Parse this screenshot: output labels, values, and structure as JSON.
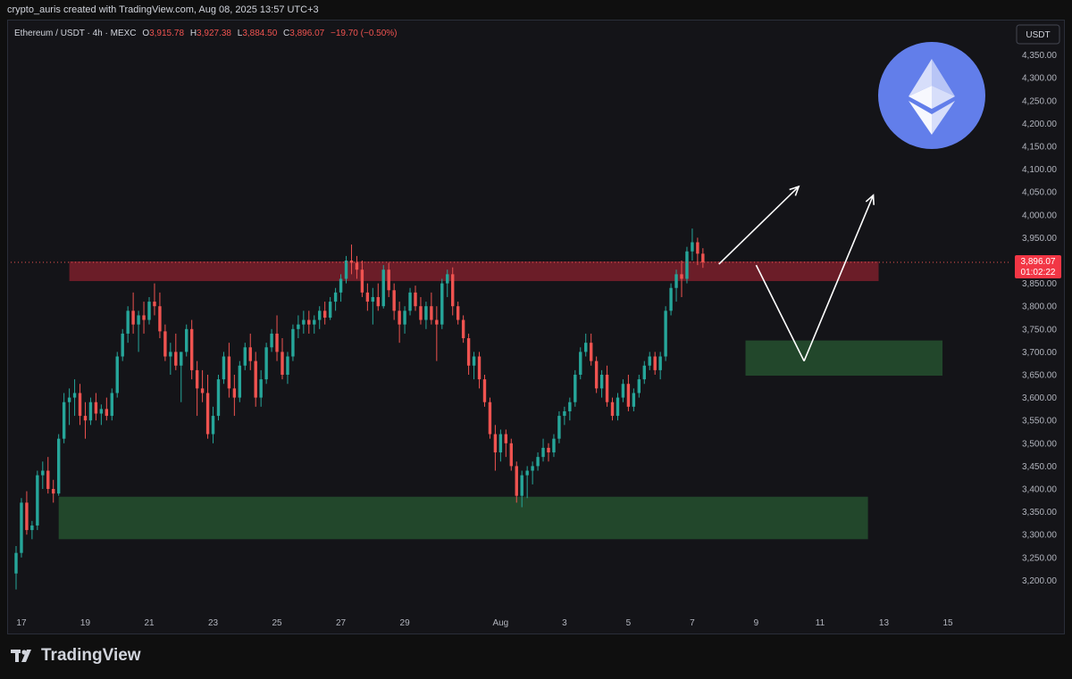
{
  "header": {
    "credit": "crypto_auris created with TradingView.com, Aug 08, 2025 13:57 UTC+3"
  },
  "legend": {
    "symbol": "Ethereum / USDT · 4h · MEXC",
    "o_label": "O",
    "o_value": "3,915.78",
    "h_label": "H",
    "h_value": "3,927.38",
    "l_label": "L",
    "l_value": "3,884.50",
    "c_label": "C",
    "c_value": "3,896.07",
    "change": "−19.70 (−0.50%)"
  },
  "currency_button": "USDT",
  "price_tag": {
    "price": "3,896.07",
    "countdown": "01:02:22"
  },
  "brand": {
    "name": "TradingView"
  },
  "colors": {
    "up": "#26a69a",
    "down": "#ef5350",
    "resistance_zone": "#7a1f2b",
    "support_zone": "#234a2c",
    "eth_circle": "#627eea"
  },
  "icons": {
    "logo": "ethereum-logo-icon",
    "brand": "tradingview-logo-icon"
  },
  "chart_data": {
    "type": "candlestick",
    "ylim": [
      3150,
      4400
    ],
    "y_ticks": [
      3200,
      3250,
      3300,
      3350,
      3400,
      3450,
      3500,
      3550,
      3600,
      3650,
      3700,
      3750,
      3800,
      3850,
      3900,
      3950,
      4000,
      4050,
      4100,
      4150,
      4200,
      4250,
      4300,
      4350
    ],
    "y_tick_labels": [
      "3,200.00",
      "3,250.00",
      "3,300.00",
      "3,350.00",
      "3,400.00",
      "3,450.00",
      "3,500.00",
      "3,550.00",
      "3,600.00",
      "3,650.00",
      "3,700.00",
      "3,750.00",
      "3,800.00",
      "3,850.00",
      "3,900.00",
      "3,950.00",
      "4,000.00",
      "4,050.00",
      "4,100.00",
      "4,150.00",
      "4,200.00",
      "4,250.00",
      "4,300.00",
      "4,350.00"
    ],
    "x_ticks": [
      {
        "label": "17",
        "bar": 1
      },
      {
        "label": "19",
        "bar": 13
      },
      {
        "label": "21",
        "bar": 25
      },
      {
        "label": "23",
        "bar": 37
      },
      {
        "label": "25",
        "bar": 49
      },
      {
        "label": "27",
        "bar": 61
      },
      {
        "label": "29",
        "bar": 73
      },
      {
        "label": "Aug",
        "bar": 91
      },
      {
        "label": "3",
        "bar": 103
      },
      {
        "label": "5",
        "bar": 115
      },
      {
        "label": "7",
        "bar": 127
      },
      {
        "label": "9",
        "bar": 139
      },
      {
        "label": "11",
        "bar": 151
      },
      {
        "label": "13",
        "bar": 163
      },
      {
        "label": "15",
        "bar": 175
      }
    ],
    "zones": [
      {
        "name": "resistance",
        "from_bar": 10,
        "to_bar": 162,
        "low": 3855,
        "high": 3898
      },
      {
        "name": "support",
        "from_bar": 8,
        "to_bar": 160,
        "low": 3290,
        "high": 3383
      },
      {
        "name": "demand",
        "from_bar": 137,
        "to_bar": 174,
        "low": 3648,
        "high": 3725
      }
    ],
    "arrows": [
      {
        "from": [
          132,
          3892
        ],
        "to": [
          147,
          4062
        ]
      },
      {
        "from": [
          139,
          3890
        ],
        "to": [
          148,
          3680
        ]
      },
      {
        "from": [
          148,
          3680
        ],
        "to": [
          161,
          4043
        ]
      }
    ],
    "last_price": 3896.07,
    "ohlc": [
      [
        3215,
        3275,
        3180,
        3260
      ],
      [
        3260,
        3380,
        3250,
        3370
      ],
      [
        3370,
        3395,
        3300,
        3310
      ],
      [
        3310,
        3330,
        3290,
        3320
      ],
      [
        3320,
        3440,
        3310,
        3430
      ],
      [
        3430,
        3460,
        3400,
        3440
      ],
      [
        3440,
        3470,
        3390,
        3400
      ],
      [
        3400,
        3420,
        3370,
        3390
      ],
      [
        3390,
        3520,
        3385,
        3510
      ],
      [
        3510,
        3610,
        3500,
        3590
      ],
      [
        3590,
        3620,
        3540,
        3600
      ],
      [
        3600,
        3640,
        3560,
        3610
      ],
      [
        3610,
        3630,
        3540,
        3560
      ],
      [
        3560,
        3590,
        3510,
        3550
      ],
      [
        3550,
        3600,
        3540,
        3590
      ],
      [
        3590,
        3610,
        3550,
        3565
      ],
      [
        3565,
        3585,
        3540,
        3575
      ],
      [
        3575,
        3600,
        3550,
        3560
      ],
      [
        3560,
        3620,
        3550,
        3610
      ],
      [
        3610,
        3700,
        3600,
        3690
      ],
      [
        3690,
        3750,
        3680,
        3740
      ],
      [
        3740,
        3800,
        3720,
        3790
      ],
      [
        3790,
        3830,
        3740,
        3760
      ],
      [
        3760,
        3790,
        3700,
        3780
      ],
      [
        3780,
        3810,
        3740,
        3770
      ],
      [
        3770,
        3820,
        3760,
        3810
      ],
      [
        3810,
        3850,
        3780,
        3800
      ],
      [
        3800,
        3830,
        3730,
        3745
      ],
      [
        3745,
        3760,
        3680,
        3690
      ],
      [
        3690,
        3720,
        3650,
        3700
      ],
      [
        3700,
        3740,
        3660,
        3670
      ],
      [
        3670,
        3700,
        3590,
        3700
      ],
      [
        3700,
        3760,
        3690,
        3750
      ],
      [
        3750,
        3770,
        3640,
        3660
      ],
      [
        3660,
        3680,
        3560,
        3620
      ],
      [
        3620,
        3660,
        3590,
        3610
      ],
      [
        3610,
        3650,
        3510,
        3520
      ],
      [
        3520,
        3580,
        3500,
        3560
      ],
      [
        3560,
        3650,
        3550,
        3640
      ],
      [
        3640,
        3700,
        3630,
        3690
      ],
      [
        3690,
        3720,
        3600,
        3620
      ],
      [
        3620,
        3650,
        3560,
        3600
      ],
      [
        3600,
        3680,
        3590,
        3670
      ],
      [
        3670,
        3720,
        3660,
        3710
      ],
      [
        3710,
        3740,
        3660,
        3680
      ],
      [
        3680,
        3700,
        3580,
        3600
      ],
      [
        3600,
        3660,
        3580,
        3640
      ],
      [
        3640,
        3720,
        3630,
        3710
      ],
      [
        3710,
        3750,
        3700,
        3740
      ],
      [
        3740,
        3780,
        3680,
        3700
      ],
      [
        3700,
        3730,
        3640,
        3650
      ],
      [
        3650,
        3700,
        3630,
        3690
      ],
      [
        3690,
        3760,
        3680,
        3750
      ],
      [
        3750,
        3780,
        3730,
        3760
      ],
      [
        3760,
        3790,
        3740,
        3770
      ],
      [
        3770,
        3790,
        3740,
        3760
      ],
      [
        3760,
        3780,
        3740,
        3770
      ],
      [
        3770,
        3800,
        3750,
        3790
      ],
      [
        3790,
        3810,
        3760,
        3775
      ],
      [
        3775,
        3820,
        3770,
        3810
      ],
      [
        3810,
        3840,
        3790,
        3830
      ],
      [
        3830,
        3870,
        3810,
        3860
      ],
      [
        3860,
        3910,
        3850,
        3900
      ],
      [
        3900,
        3935,
        3870,
        3895
      ],
      [
        3895,
        3910,
        3860,
        3880
      ],
      [
        3880,
        3900,
        3820,
        3830
      ],
      [
        3830,
        3850,
        3790,
        3810
      ],
      [
        3810,
        3840,
        3760,
        3820
      ],
      [
        3820,
        3850,
        3790,
        3800
      ],
      [
        3800,
        3890,
        3795,
        3880
      ],
      [
        3880,
        3895,
        3820,
        3835
      ],
      [
        3835,
        3850,
        3770,
        3790
      ],
      [
        3790,
        3810,
        3720,
        3760
      ],
      [
        3760,
        3800,
        3740,
        3790
      ],
      [
        3790,
        3840,
        3780,
        3830
      ],
      [
        3830,
        3845,
        3790,
        3800
      ],
      [
        3800,
        3820,
        3760,
        3770
      ],
      [
        3770,
        3810,
        3750,
        3800
      ],
      [
        3800,
        3830,
        3760,
        3770
      ],
      [
        3770,
        3800,
        3680,
        3760
      ],
      [
        3760,
        3860,
        3750,
        3850
      ],
      [
        3850,
        3880,
        3820,
        3870
      ],
      [
        3870,
        3885,
        3780,
        3800
      ],
      [
        3800,
        3810,
        3760,
        3770
      ],
      [
        3770,
        3780,
        3720,
        3730
      ],
      [
        3730,
        3740,
        3650,
        3670
      ],
      [
        3670,
        3700,
        3640,
        3690
      ],
      [
        3690,
        3700,
        3620,
        3640
      ],
      [
        3640,
        3650,
        3580,
        3590
      ],
      [
        3590,
        3600,
        3510,
        3520
      ],
      [
        3520,
        3540,
        3440,
        3480
      ],
      [
        3480,
        3530,
        3460,
        3520
      ],
      [
        3520,
        3530,
        3470,
        3500
      ],
      [
        3500,
        3510,
        3440,
        3450
      ],
      [
        3450,
        3460,
        3370,
        3385
      ],
      [
        3385,
        3440,
        3360,
        3430
      ],
      [
        3430,
        3450,
        3380,
        3440
      ],
      [
        3440,
        3460,
        3410,
        3450
      ],
      [
        3450,
        3480,
        3440,
        3470
      ],
      [
        3470,
        3510,
        3460,
        3490
      ],
      [
        3490,
        3500,
        3460,
        3480
      ],
      [
        3480,
        3520,
        3470,
        3510
      ],
      [
        3510,
        3570,
        3500,
        3560
      ],
      [
        3560,
        3580,
        3540,
        3570
      ],
      [
        3570,
        3600,
        3550,
        3590
      ],
      [
        3590,
        3660,
        3580,
        3650
      ],
      [
        3650,
        3710,
        3640,
        3700
      ],
      [
        3700,
        3740,
        3690,
        3720
      ],
      [
        3720,
        3740,
        3670,
        3680
      ],
      [
        3680,
        3690,
        3610,
        3620
      ],
      [
        3620,
        3660,
        3600,
        3650
      ],
      [
        3650,
        3670,
        3580,
        3590
      ],
      [
        3590,
        3600,
        3550,
        3560
      ],
      [
        3560,
        3610,
        3550,
        3600
      ],
      [
        3600,
        3640,
        3590,
        3630
      ],
      [
        3630,
        3650,
        3570,
        3580
      ],
      [
        3580,
        3620,
        3570,
        3610
      ],
      [
        3610,
        3650,
        3600,
        3640
      ],
      [
        3640,
        3680,
        3630,
        3670
      ],
      [
        3670,
        3700,
        3660,
        3690
      ],
      [
        3690,
        3700,
        3650,
        3660
      ],
      [
        3660,
        3700,
        3640,
        3690
      ],
      [
        3690,
        3800,
        3680,
        3790
      ],
      [
        3790,
        3850,
        3780,
        3840
      ],
      [
        3840,
        3880,
        3810,
        3870
      ],
      [
        3870,
        3900,
        3820,
        3860
      ],
      [
        3860,
        3930,
        3850,
        3920
      ],
      [
        3920,
        3970,
        3900,
        3940
      ],
      [
        3940,
        3950,
        3890,
        3915
      ],
      [
        3915,
        3927,
        3884,
        3896
      ]
    ]
  }
}
